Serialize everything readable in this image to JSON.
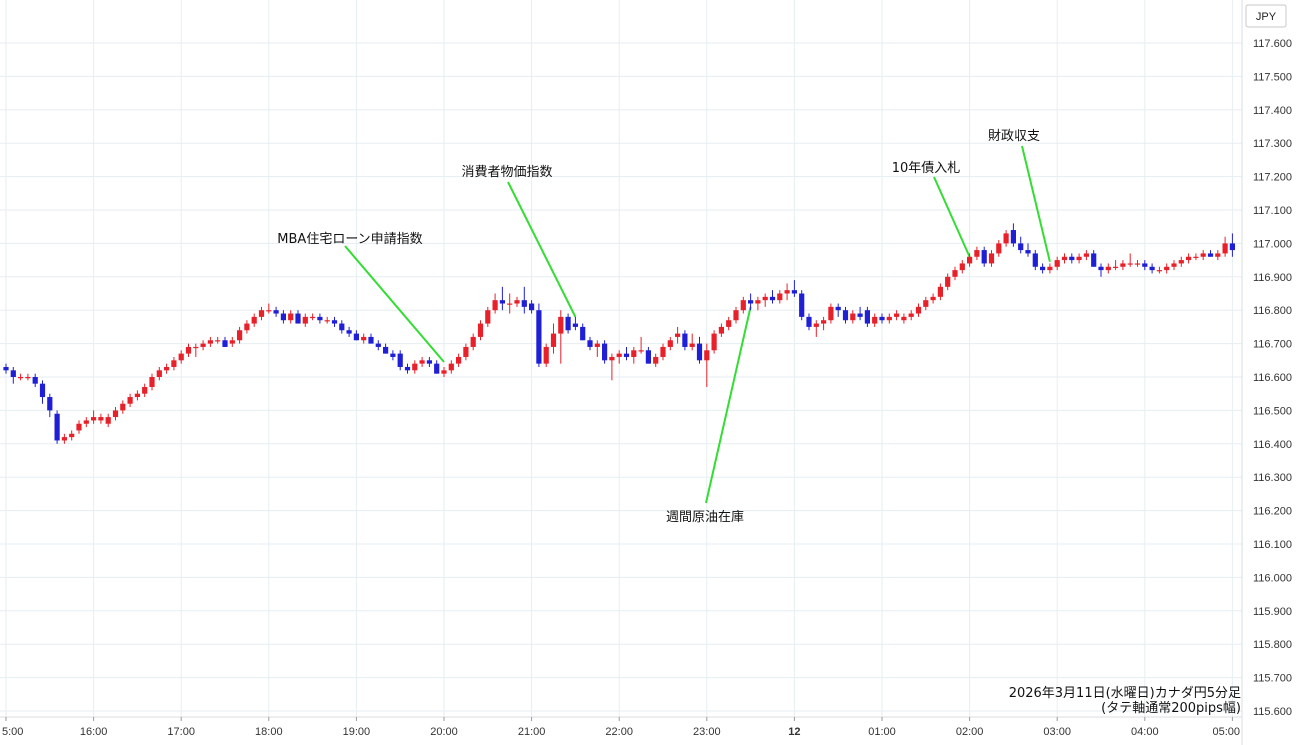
{
  "chart_data": {
    "type": "candlestick",
    "currency_label": "JPY",
    "y_range": [
      115.6,
      117.7
    ],
    "y_ticks": [
      "115.600",
      "115.700",
      "115.800",
      "115.900",
      "116.000",
      "116.100",
      "116.200",
      "116.300",
      "116.400",
      "116.500",
      "116.600",
      "116.700",
      "116.800",
      "116.900",
      "117.000",
      "117.100",
      "117.200",
      "117.300",
      "117.400",
      "117.500",
      "117.600"
    ],
    "x_ticks": [
      "5:00",
      "16:00",
      "17:00",
      "18:00",
      "19:00",
      "20:00",
      "21:00",
      "22:00",
      "23:00",
      "12",
      "01:00",
      "02:00",
      "03:00",
      "04:00",
      "05:00"
    ],
    "colors": {
      "up": "#e8202a",
      "down": "#1f1fd6",
      "grid": "#e6eef2",
      "annotation_line": "#33dd33"
    },
    "note_lines": [
      "2026年3月11日(水曜日)カナダ円5分足",
      "(タテ軸通常200pips幅)"
    ],
    "annotations": [
      {
        "label": "MBA住宅ローン申請指数",
        "time": "20:00",
        "price": 116.645
      },
      {
        "label": "消費者物価指数",
        "time": "21:30",
        "price": 116.78
      },
      {
        "label": "週間原油在庫",
        "time": "23:30",
        "price": 116.81
      },
      {
        "label": "10年債入札",
        "time": "02:00",
        "price": 116.96
      },
      {
        "label": "財政収支",
        "time": "02:55",
        "price": 116.945
      }
    ],
    "candles": [
      [
        116.63,
        116.64,
        116.61,
        116.62
      ],
      [
        116.62,
        116.63,
        116.58,
        116.6
      ],
      [
        116.6,
        116.61,
        116.59,
        116.6
      ],
      [
        116.6,
        116.61,
        116.59,
        116.6
      ],
      [
        116.6,
        116.61,
        116.57,
        116.58
      ],
      [
        116.58,
        116.59,
        116.52,
        116.54
      ],
      [
        116.54,
        116.55,
        116.48,
        116.5
      ],
      [
        116.49,
        116.5,
        116.4,
        116.41
      ],
      [
        116.41,
        116.43,
        116.4,
        116.42
      ],
      [
        116.42,
        116.44,
        116.41,
        116.43
      ],
      [
        116.44,
        116.47,
        116.43,
        116.46
      ],
      [
        116.46,
        116.48,
        116.45,
        116.47
      ],
      [
        116.47,
        116.5,
        116.46,
        116.48
      ],
      [
        116.47,
        116.49,
        116.46,
        116.48
      ],
      [
        116.46,
        116.49,
        116.45,
        116.48
      ],
      [
        116.48,
        116.51,
        116.47,
        116.5
      ],
      [
        116.5,
        116.53,
        116.49,
        116.52
      ],
      [
        116.52,
        116.55,
        116.51,
        116.54
      ],
      [
        116.54,
        116.56,
        116.53,
        116.55
      ],
      [
        116.55,
        116.58,
        116.54,
        116.57
      ],
      [
        116.57,
        116.61,
        116.56,
        116.6
      ],
      [
        116.6,
        116.63,
        116.59,
        116.62
      ],
      [
        116.62,
        116.64,
        116.61,
        116.63
      ],
      [
        116.63,
        116.66,
        116.62,
        116.65
      ],
      [
        116.65,
        116.68,
        116.64,
        116.67
      ],
      [
        116.67,
        116.7,
        116.66,
        116.69
      ],
      [
        116.69,
        116.7,
        116.66,
        116.69
      ],
      [
        116.69,
        116.71,
        116.68,
        116.7
      ],
      [
        116.7,
        116.72,
        116.69,
        116.71
      ],
      [
        116.71,
        116.72,
        116.7,
        116.71
      ],
      [
        116.71,
        116.72,
        116.69,
        116.69
      ],
      [
        116.7,
        116.72,
        116.69,
        116.71
      ],
      [
        116.71,
        116.75,
        116.7,
        116.74
      ],
      [
        116.74,
        116.77,
        116.73,
        116.76
      ],
      [
        116.76,
        116.79,
        116.75,
        116.78
      ],
      [
        116.78,
        116.81,
        116.77,
        116.8
      ],
      [
        116.8,
        116.82,
        116.79,
        116.8
      ],
      [
        116.8,
        116.81,
        116.78,
        116.79
      ],
      [
        116.79,
        116.8,
        116.76,
        116.77
      ],
      [
        116.77,
        116.8,
        116.76,
        116.79
      ],
      [
        116.79,
        116.8,
        116.76,
        116.76
      ],
      [
        116.76,
        116.79,
        116.75,
        116.78
      ],
      [
        116.78,
        116.79,
        116.77,
        116.78
      ],
      [
        116.78,
        116.79,
        116.76,
        116.77
      ],
      [
        116.77,
        116.78,
        116.76,
        116.77
      ],
      [
        116.77,
        116.78,
        116.75,
        116.76
      ],
      [
        116.76,
        116.77,
        116.73,
        116.74
      ],
      [
        116.74,
        116.75,
        116.72,
        116.73
      ],
      [
        116.73,
        116.74,
        116.71,
        116.71
      ],
      [
        116.71,
        116.73,
        116.7,
        116.72
      ],
      [
        116.72,
        116.73,
        116.7,
        116.7
      ],
      [
        116.7,
        116.71,
        116.68,
        116.69
      ],
      [
        116.69,
        116.7,
        116.67,
        116.67
      ],
      [
        116.67,
        116.68,
        116.65,
        116.66
      ],
      [
        116.67,
        116.68,
        116.62,
        116.63
      ],
      [
        116.63,
        116.64,
        116.61,
        116.62
      ],
      [
        116.62,
        116.65,
        116.61,
        116.64
      ],
      [
        116.64,
        116.66,
        116.63,
        116.65
      ],
      [
        116.65,
        116.66,
        116.63,
        116.64
      ],
      [
        116.64,
        116.65,
        116.61,
        116.61
      ],
      [
        116.61,
        116.63,
        116.6,
        116.62
      ],
      [
        116.62,
        116.65,
        116.61,
        116.64
      ],
      [
        116.64,
        116.67,
        116.63,
        116.66
      ],
      [
        116.66,
        116.7,
        116.65,
        116.69
      ],
      [
        116.69,
        116.73,
        116.68,
        116.72
      ],
      [
        116.72,
        116.77,
        116.71,
        116.76
      ],
      [
        116.76,
        116.81,
        116.75,
        116.8
      ],
      [
        116.8,
        116.85,
        116.79,
        116.83
      ],
      [
        116.83,
        116.87,
        116.8,
        116.82
      ],
      [
        116.82,
        116.85,
        116.79,
        116.82
      ],
      [
        116.82,
        116.84,
        116.81,
        116.83
      ],
      [
        116.83,
        116.87,
        116.79,
        116.81
      ],
      [
        116.82,
        116.83,
        116.79,
        116.8
      ],
      [
        116.8,
        116.82,
        116.63,
        116.64
      ],
      [
        116.64,
        116.7,
        116.63,
        116.69
      ],
      [
        116.69,
        116.76,
        116.67,
        116.73
      ],
      [
        116.73,
        116.8,
        116.64,
        116.78
      ],
      [
        116.78,
        116.79,
        116.73,
        116.74
      ],
      [
        116.76,
        116.78,
        116.74,
        116.75
      ],
      [
        116.75,
        116.76,
        116.71,
        116.71
      ],
      [
        116.71,
        116.72,
        116.68,
        116.69
      ],
      [
        116.69,
        116.71,
        116.66,
        116.7
      ],
      [
        116.7,
        116.71,
        116.64,
        116.65
      ],
      [
        116.65,
        116.67,
        116.59,
        116.66
      ],
      [
        116.66,
        116.68,
        116.64,
        116.67
      ],
      [
        116.67,
        116.69,
        116.65,
        116.66
      ],
      [
        116.66,
        116.69,
        116.64,
        116.68
      ],
      [
        116.68,
        116.72,
        116.67,
        116.68
      ],
      [
        116.68,
        116.69,
        116.64,
        116.64
      ],
      [
        116.64,
        116.67,
        116.63,
        116.66
      ],
      [
        116.66,
        116.7,
        116.65,
        116.69
      ],
      [
        116.69,
        116.72,
        116.68,
        116.71
      ],
      [
        116.72,
        116.75,
        116.7,
        116.73
      ],
      [
        116.73,
        116.74,
        116.68,
        116.69
      ],
      [
        116.69,
        116.73,
        116.68,
        116.7
      ],
      [
        116.7,
        116.72,
        116.64,
        116.65
      ],
      [
        116.65,
        116.7,
        116.57,
        116.68
      ],
      [
        116.68,
        116.74,
        116.67,
        116.73
      ],
      [
        116.73,
        116.76,
        116.72,
        116.75
      ],
      [
        116.75,
        116.78,
        116.74,
        116.77
      ],
      [
        116.77,
        116.81,
        116.76,
        116.8
      ],
      [
        116.8,
        116.84,
        116.79,
        116.83
      ],
      [
        116.83,
        116.85,
        116.8,
        116.82
      ],
      [
        116.82,
        116.84,
        116.8,
        116.83
      ],
      [
        116.83,
        116.85,
        116.81,
        116.84
      ],
      [
        116.84,
        116.86,
        116.82,
        116.83
      ],
      [
        116.83,
        116.86,
        116.82,
        116.85
      ],
      [
        116.85,
        116.88,
        116.83,
        116.86
      ],
      [
        116.86,
        116.89,
        116.84,
        116.85
      ],
      [
        116.85,
        116.86,
        116.77,
        116.78
      ],
      [
        116.78,
        116.79,
        116.74,
        116.75
      ],
      [
        116.75,
        116.77,
        116.72,
        116.76
      ],
      [
        116.76,
        116.78,
        116.74,
        116.77
      ],
      [
        116.77,
        116.82,
        116.76,
        116.81
      ],
      [
        116.81,
        116.82,
        116.78,
        116.8
      ],
      [
        116.8,
        116.81,
        116.76,
        116.77
      ],
      [
        116.77,
        116.8,
        116.76,
        116.79
      ],
      [
        116.79,
        116.81,
        116.77,
        116.78
      ],
      [
        116.8,
        116.81,
        116.75,
        116.76
      ],
      [
        116.76,
        116.79,
        116.75,
        116.78
      ],
      [
        116.78,
        116.79,
        116.76,
        116.77
      ],
      [
        116.77,
        116.79,
        116.76,
        116.78
      ],
      [
        116.78,
        116.8,
        116.77,
        116.79
      ],
      [
        116.77,
        116.79,
        116.76,
        116.78
      ],
      [
        116.78,
        116.8,
        116.77,
        116.79
      ],
      [
        116.79,
        116.82,
        116.78,
        116.81
      ],
      [
        116.81,
        116.84,
        116.8,
        116.83
      ],
      [
        116.83,
        116.85,
        116.82,
        116.84
      ],
      [
        116.84,
        116.88,
        116.83,
        116.87
      ],
      [
        116.87,
        116.91,
        116.86,
        116.9
      ],
      [
        116.9,
        116.93,
        116.89,
        116.92
      ],
      [
        116.92,
        116.95,
        116.91,
        116.94
      ],
      [
        116.94,
        116.97,
        116.93,
        116.96
      ],
      [
        116.96,
        116.99,
        116.95,
        116.98
      ],
      [
        116.98,
        116.99,
        116.93,
        116.94
      ],
      [
        116.94,
        116.98,
        116.93,
        116.97
      ],
      [
        116.97,
        117.01,
        116.96,
        117.0
      ],
      [
        117.0,
        117.04,
        116.99,
        117.03
      ],
      [
        117.04,
        117.06,
        116.99,
        117.0
      ],
      [
        117.0,
        117.02,
        116.97,
        116.98
      ],
      [
        116.98,
        117.0,
        116.96,
        116.97
      ],
      [
        116.97,
        116.98,
        116.92,
        116.93
      ],
      [
        116.93,
        116.94,
        116.91,
        116.92
      ],
      [
        116.92,
        116.94,
        116.91,
        116.93
      ],
      [
        116.93,
        116.96,
        116.92,
        116.95
      ],
      [
        116.95,
        116.97,
        116.94,
        116.96
      ],
      [
        116.96,
        116.97,
        116.94,
        116.95
      ],
      [
        116.95,
        116.97,
        116.94,
        116.96
      ],
      [
        116.96,
        116.98,
        116.95,
        116.97
      ],
      [
        116.97,
        116.98,
        116.93,
        116.93
      ],
      [
        116.93,
        116.94,
        116.9,
        116.92
      ],
      [
        116.92,
        116.94,
        116.91,
        116.93
      ],
      [
        116.93,
        116.95,
        116.92,
        116.93
      ],
      [
        116.93,
        116.95,
        116.92,
        116.94
      ],
      [
        116.94,
        116.97,
        116.93,
        116.94
      ],
      [
        116.94,
        116.95,
        116.93,
        116.94
      ],
      [
        116.94,
        116.95,
        116.92,
        116.93
      ],
      [
        116.93,
        116.94,
        116.91,
        116.92
      ],
      [
        116.92,
        116.93,
        116.91,
        116.92
      ],
      [
        116.92,
        116.94,
        116.91,
        116.93
      ],
      [
        116.93,
        116.95,
        116.92,
        116.94
      ],
      [
        116.94,
        116.96,
        116.93,
        116.95
      ],
      [
        116.95,
        116.97,
        116.94,
        116.96
      ],
      [
        116.96,
        116.97,
        116.95,
        116.96
      ],
      [
        116.96,
        116.98,
        116.95,
        116.97
      ],
      [
        116.97,
        116.98,
        116.96,
        116.96
      ],
      [
        116.96,
        116.98,
        116.95,
        116.97
      ],
      [
        116.97,
        117.02,
        116.96,
        117.0
      ],
      [
        117.0,
        117.03,
        116.96,
        116.98
      ]
    ]
  }
}
